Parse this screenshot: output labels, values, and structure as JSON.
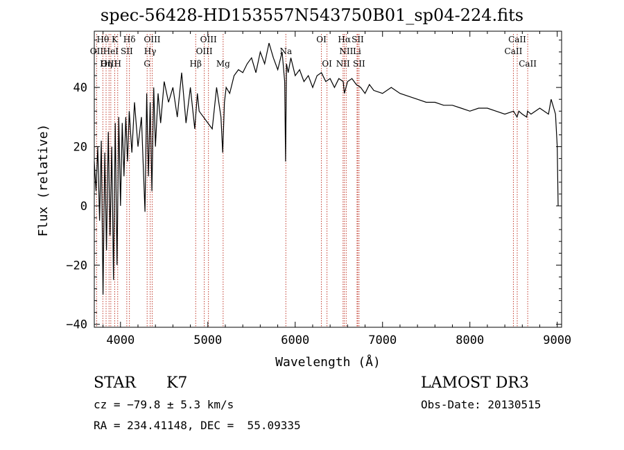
{
  "chart_data": {
    "type": "line",
    "title": "spec-56428-HD153557N543750B01_sp04-224.fits",
    "xlabel": "Wavelength (Å)",
    "ylabel": "Flux (relative)",
    "xlim": [
      3700,
      9050
    ],
    "ylim": [
      -41,
      59
    ],
    "x_ticks": [
      4000,
      5000,
      6000,
      7000,
      8000,
      9000
    ],
    "y_ticks": [
      -40,
      -20,
      0,
      20,
      40
    ],
    "series": [
      {
        "name": "spectrum",
        "x": [
          3700,
          3720,
          3740,
          3760,
          3780,
          3800,
          3820,
          3840,
          3860,
          3880,
          3900,
          3920,
          3940,
          3960,
          3980,
          4000,
          4020,
          4040,
          4060,
          4080,
          4100,
          4130,
          4160,
          4200,
          4240,
          4280,
          4300,
          4320,
          4340,
          4360,
          4380,
          4400,
          4430,
          4460,
          4500,
          4550,
          4600,
          4650,
          4700,
          4750,
          4800,
          4850,
          4880,
          4900,
          4950,
          5000,
          5050,
          5100,
          5150,
          5170,
          5190,
          5210,
          5250,
          5300,
          5350,
          5400,
          5450,
          5500,
          5550,
          5600,
          5650,
          5700,
          5750,
          5800,
          5850,
          5880,
          5890,
          5900,
          5920,
          5950,
          6000,
          6050,
          6100,
          6150,
          6200,
          6250,
          6300,
          6350,
          6400,
          6450,
          6500,
          6550,
          6563,
          6600,
          6650,
          6700,
          6750,
          6800,
          6850,
          6900,
          7000,
          7100,
          7200,
          7300,
          7400,
          7500,
          7600,
          7700,
          7800,
          7900,
          8000,
          8100,
          8200,
          8300,
          8400,
          8500,
          8540,
          8560,
          8600,
          8650,
          8660,
          8700,
          8800,
          8900,
          8930,
          8960,
          8980,
          9000,
          9010
        ],
        "y": [
          15,
          5,
          20,
          -5,
          22,
          -30,
          18,
          -15,
          25,
          -10,
          20,
          -25,
          28,
          -20,
          30,
          0,
          28,
          10,
          30,
          15,
          32,
          18,
          35,
          20,
          30,
          -2,
          38,
          10,
          35,
          5,
          40,
          20,
          38,
          28,
          42,
          35,
          40,
          30,
          45,
          28,
          40,
          26,
          38,
          32,
          30,
          28,
          26,
          40,
          30,
          18,
          35,
          40,
          38,
          44,
          46,
          45,
          48,
          50,
          45,
          52,
          48,
          55,
          50,
          46,
          52,
          42,
          15,
          48,
          45,
          50,
          44,
          46,
          42,
          44,
          40,
          44,
          45,
          42,
          43,
          40,
          43,
          42,
          38,
          42,
          43,
          41,
          40,
          38,
          41,
          39,
          38,
          40,
          38,
          37,
          36,
          35,
          35,
          34,
          34,
          33,
          32,
          33,
          33,
          32,
          31,
          32,
          30,
          32,
          31,
          30,
          32,
          31,
          33,
          31,
          36,
          33,
          31,
          20,
          0
        ]
      }
    ],
    "line_labels": [
      {
        "label": "Hθ",
        "wavelength": 3798,
        "row": 1
      },
      {
        "label": "OII",
        "wavelength": 3727,
        "row": 2
      },
      {
        "label": "OIII",
        "wavelength": 3869,
        "row": 3
      },
      {
        "label": "K",
        "wavelength": 3934,
        "row": 1
      },
      {
        "label": "HeI",
        "wavelength": 3889,
        "row": 2
      },
      {
        "label": "Hη",
        "wavelength": 3835,
        "row": 3
      },
      {
        "label": "H",
        "wavelength": 3968,
        "row": 3
      },
      {
        "label": "Hδ",
        "wavelength": 4102,
        "row": 1
      },
      {
        "label": "SII",
        "wavelength": 4072,
        "row": 2
      },
      {
        "label": "OIII",
        "wavelength": 4363,
        "row": 1
      },
      {
        "label": "Hγ",
        "wavelength": 4340,
        "row": 2
      },
      {
        "label": "G",
        "wavelength": 4305,
        "row": 3
      },
      {
        "label": "Hβ",
        "wavelength": 4861,
        "row": 3
      },
      {
        "label": "OIII",
        "wavelength": 5007,
        "row": 1
      },
      {
        "label": "OIII",
        "wavelength": 4959,
        "row": 2
      },
      {
        "label": "Mg",
        "wavelength": 5175,
        "row": 3
      },
      {
        "label": "Na",
        "wavelength": 5893,
        "row": 2
      },
      {
        "label": "OI",
        "wavelength": 6300,
        "row": 1
      },
      {
        "label": "OI",
        "wavelength": 6364,
        "row": 3
      },
      {
        "label": "Hα",
        "wavelength": 6563,
        "row": 1
      },
      {
        "label": "SII",
        "wavelength": 6716,
        "row": 1
      },
      {
        "label": "NII",
        "wavelength": 6584,
        "row": 2
      },
      {
        "label": "Li",
        "wavelength": 6708,
        "row": 2
      },
      {
        "label": "NII",
        "wavelength": 6548,
        "row": 3
      },
      {
        "label": "SII",
        "wavelength": 6731,
        "row": 3
      },
      {
        "label": "CaII",
        "wavelength": 8542,
        "row": 1
      },
      {
        "label": "CaII",
        "wavelength": 8498,
        "row": 2
      },
      {
        "label": "CaII",
        "wavelength": 8662,
        "row": 3
      }
    ],
    "line_color": "#c0392b",
    "spectrum_color": "#000000"
  },
  "info": {
    "object_class": "STAR",
    "subclass": "K7",
    "survey": "LAMOST DR3",
    "cz": "cz = −79.8 ± 5.3 km/s",
    "obs_date": "Obs-Date: 20130515",
    "coords": "RA = 234.41148, DEC =  55.09335"
  }
}
